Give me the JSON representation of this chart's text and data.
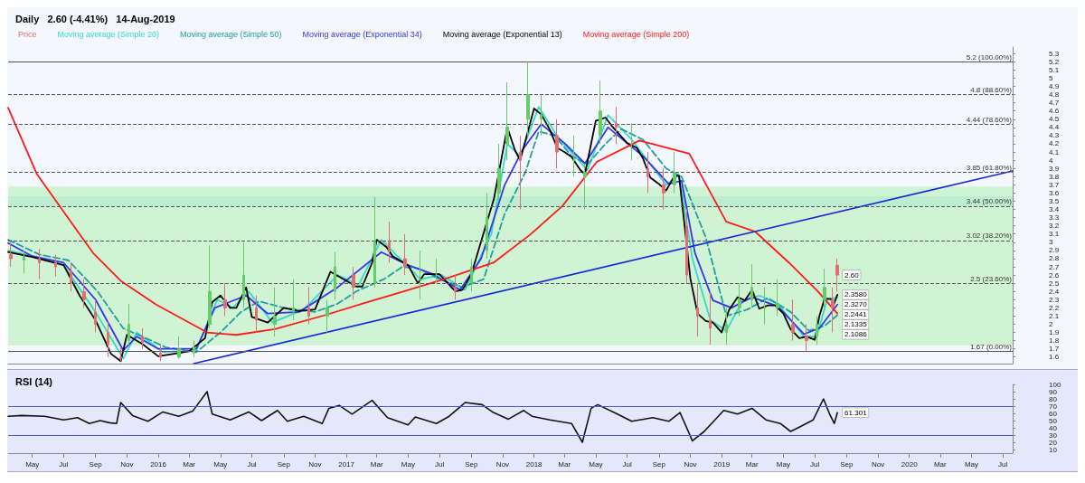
{
  "chart_data": [
    {
      "type": "line",
      "title": "Daily   2.60 (-4.41%)   14-Aug-2019",
      "legend": "top left",
      "tick_labels": "y",
      "xlim": [
        "2015-03-15",
        "2020-07-20"
      ],
      "ylim": [
        1.52,
        5.38
      ],
      "yticks": [
        1.6,
        1.7,
        1.8,
        1.9,
        2,
        2.1,
        2.2,
        2.3,
        2.4,
        2.5,
        2.6,
        2.7,
        2.8,
        2.9,
        3,
        3.1,
        3.2,
        3.3,
        3.4,
        3.5,
        3.6,
        3.7,
        3.8,
        3.9,
        4,
        4.1,
        4.2,
        4.3,
        4.4,
        4.5,
        4.6,
        4.7,
        4.8,
        4.9,
        5,
        5.1,
        5.2,
        5.3
      ],
      "series": [
        {
          "name": "Price",
          "type": "candlestick",
          "colors": [
            "#e07070",
            "#66cc66",
            "#e07070",
            "#e07070",
            "#e07070",
            "#e07070",
            "#e07070",
            "#e07070",
            "#e07070",
            "#66cc66",
            "#e07070",
            "#e07070",
            "#66cc66",
            "#66cc66",
            "#66cc66",
            "#e07070",
            "#66cc66",
            "#e07070",
            "#66cc66",
            "#66cc66",
            "#e07070",
            "#66cc66",
            "#66cc66",
            "#e07070",
            "#66cc66",
            "#e07070",
            "#e07070",
            "#66cc66",
            "#66cc66",
            "#e07070",
            "#66cc66",
            "#66cc66",
            "#66cc66",
            "#66cc66",
            "#e07070",
            "#66cc66",
            "#66cc66",
            "#e07070",
            "#66cc66",
            "#66cc66",
            "#66cc66",
            "#e07070",
            "#66cc66",
            "#e07070",
            "#e07070",
            "#66cc66",
            "#e07070",
            "#e07070",
            "#e07070",
            "#66cc66",
            "#66cc66",
            "#66cc66",
            "#66cc66",
            "#66cc66",
            "#e07070",
            "#e07070",
            "#66cc66",
            "#66cc66",
            "#e07070",
            "#e07070"
          ],
          "x": [
            "2015-03-20",
            "2015-04-15",
            "2015-05-15",
            "2015-06-15",
            "2015-07-15",
            "2015-08-10",
            "2015-09-01",
            "2015-09-25",
            "2015-10-20",
            "2015-11-05",
            "2015-12-01",
            "2016-01-05",
            "2016-02-10",
            "2016-03-10",
            "2016-04-10",
            "2016-05-10",
            "2016-06-15",
            "2016-07-10",
            "2016-08-15",
            "2016-09-20",
            "2016-10-20",
            "2016-11-25",
            "2016-12-10",
            "2017-01-15",
            "2017-02-25",
            "2017-03-25",
            "2017-04-25",
            "2017-05-25",
            "2017-06-25",
            "2017-08-01",
            "2017-09-01",
            "2017-10-01",
            "2017-10-25",
            "2017-11-10",
            "2017-12-05",
            "2017-12-20",
            "2018-01-15",
            "2018-02-15",
            "2018-03-20",
            "2018-04-10",
            "2018-05-10",
            "2018-06-10",
            "2018-07-10",
            "2018-08-10",
            "2018-09-10",
            "2018-10-01",
            "2018-10-25",
            "2018-11-15",
            "2018-12-10",
            "2019-01-10",
            "2019-02-05",
            "2019-03-01",
            "2019-03-25",
            "2019-04-20",
            "2019-05-20",
            "2019-06-15",
            "2019-07-05",
            "2019-07-20",
            "2019-08-05",
            "2019-08-14"
          ],
          "ohlc": [
            [
              2.85,
              3.0,
              2.7,
              2.8
            ],
            [
              2.78,
              2.9,
              2.62,
              2.82
            ],
            [
              2.8,
              2.92,
              2.55,
              2.75
            ],
            [
              2.75,
              2.85,
              2.58,
              2.7
            ],
            [
              2.65,
              2.75,
              2.4,
              2.5
            ],
            [
              2.4,
              2.55,
              2.2,
              2.3
            ],
            [
              2.15,
              2.3,
              1.9,
              2.0
            ],
            [
              1.9,
              2.05,
              1.6,
              1.75
            ],
            [
              1.6,
              1.72,
              1.55,
              1.58
            ],
            [
              1.8,
              2.25,
              1.75,
              2.0
            ],
            [
              1.85,
              1.95,
              1.7,
              1.78
            ],
            [
              1.65,
              1.75,
              1.55,
              1.6
            ],
            [
              1.6,
              1.85,
              1.58,
              1.7
            ],
            [
              1.65,
              1.8,
              1.6,
              1.72
            ],
            [
              2.0,
              2.96,
              1.95,
              2.4
            ],
            [
              2.3,
              2.5,
              2.1,
              2.2
            ],
            [
              2.3,
              3.0,
              2.2,
              2.6
            ],
            [
              2.2,
              2.35,
              1.9,
              2.05
            ],
            [
              2.0,
              2.45,
              1.85,
              2.1
            ],
            [
              2.15,
              2.55,
              2.05,
              2.2
            ],
            [
              2.2,
              2.45,
              2.0,
              2.1
            ],
            [
              2.1,
              2.3,
              1.9,
              2.2
            ],
            [
              2.4,
              2.88,
              2.3,
              2.7
            ],
            [
              2.6,
              2.7,
              2.3,
              2.45
            ],
            [
              2.5,
              3.55,
              2.45,
              3.0
            ],
            [
              3.0,
              3.25,
              2.75,
              2.9
            ],
            [
              2.8,
              3.1,
              2.6,
              2.7
            ],
            [
              2.55,
              2.9,
              2.3,
              2.55
            ],
            [
              2.6,
              2.8,
              2.5,
              2.6
            ],
            [
              2.45,
              2.6,
              2.3,
              2.4
            ],
            [
              2.5,
              2.8,
              2.4,
              2.7
            ],
            [
              2.9,
              3.6,
              2.8,
              3.3
            ],
            [
              3.6,
              4.2,
              3.5,
              3.9
            ],
            [
              4.2,
              4.95,
              4.0,
              4.4
            ],
            [
              4.1,
              4.3,
              3.4,
              4.0
            ],
            [
              4.5,
              5.2,
              4.3,
              4.8
            ],
            [
              4.5,
              4.8,
              4.3,
              4.55
            ],
            [
              4.3,
              4.5,
              3.9,
              4.1
            ],
            [
              4.0,
              4.3,
              3.8,
              4.0
            ],
            [
              3.8,
              3.95,
              3.4,
              3.85
            ],
            [
              4.3,
              4.97,
              4.2,
              4.6
            ],
            [
              4.45,
              4.65,
              4.2,
              4.4
            ],
            [
              4.2,
              4.45,
              4.0,
              4.2
            ],
            [
              3.9,
              4.1,
              3.6,
              3.8
            ],
            [
              3.7,
              3.9,
              3.4,
              3.6
            ],
            [
              3.7,
              4.1,
              3.6,
              3.85
            ],
            [
              3.2,
              3.4,
              2.5,
              2.6
            ],
            [
              2.2,
              2.5,
              1.85,
              2.1
            ],
            [
              2.05,
              2.4,
              1.75,
              1.95
            ],
            [
              1.9,
              2.2,
              1.75,
              2.0
            ],
            [
              2.2,
              2.5,
              2.1,
              2.3
            ],
            [
              2.3,
              2.73,
              2.2,
              2.45
            ],
            [
              2.2,
              2.45,
              2.0,
              2.2
            ],
            [
              2.2,
              2.55,
              2.1,
              2.25
            ],
            [
              2.0,
              2.3,
              1.8,
              1.9
            ],
            [
              1.85,
              2.0,
              1.67,
              1.8
            ],
            [
              1.85,
              2.1,
              1.75,
              2.0
            ],
            [
              2.3,
              2.68,
              2.2,
              2.45
            ],
            [
              2.3,
              2.45,
              1.9,
              2.2
            ],
            [
              2.72,
              2.8,
              2.4,
              2.6
            ]
          ]
        },
        {
          "name": "Moving average (Simple 20)",
          "color": "#33dcc8",
          "x": [
            "2015-03-15",
            "2015-05-01",
            "2015-07-01",
            "2015-09-01",
            "2015-10-25",
            "2015-11-20",
            "2016-01-10",
            "2016-03-15",
            "2016-04-25",
            "2016-05-25",
            "2016-06-25",
            "2016-08-10",
            "2016-10-10",
            "2016-12-15",
            "2017-01-25",
            "2017-03-10",
            "2017-04-15",
            "2017-05-25",
            "2017-07-05",
            "2017-08-20",
            "2017-10-10",
            "2017-11-10",
            "2017-12-05",
            "2018-01-10",
            "2018-02-20",
            "2018-04-15",
            "2018-05-25",
            "2018-07-10",
            "2018-09-15",
            "2018-10-10",
            "2018-11-05",
            "2018-12-10",
            "2019-01-10",
            "2019-02-10",
            "2019-03-15",
            "2019-04-20",
            "2019-06-10",
            "2019-07-05",
            "2019-07-25",
            "2019-08-14"
          ],
          "values": [
            2.9,
            2.83,
            2.72,
            2.15,
            1.58,
            1.9,
            1.66,
            1.68,
            2.3,
            2.2,
            2.4,
            2.02,
            2.18,
            2.6,
            2.48,
            3.03,
            2.8,
            2.55,
            2.6,
            2.42,
            3.1,
            4.2,
            4.05,
            4.65,
            4.25,
            3.88,
            4.55,
            4.25,
            3.7,
            3.82,
            2.8,
            2.05,
            1.92,
            2.28,
            2.35,
            2.25,
            1.85,
            1.85,
            2.3,
            2.33
          ]
        },
        {
          "name": "Moving average (Simple 50)",
          "color": "#1fa0a0",
          "line_style": "dashed",
          "x": [
            "2015-03-15",
            "2015-05-15",
            "2015-07-10",
            "2015-09-05",
            "2015-10-25",
            "2015-12-01",
            "2016-01-15",
            "2016-03-15",
            "2016-05-01",
            "2016-06-10",
            "2016-07-15",
            "2016-09-01",
            "2016-11-01",
            "2016-12-15",
            "2017-01-20",
            "2017-03-15",
            "2017-04-20",
            "2017-05-20",
            "2017-07-01",
            "2017-08-15",
            "2017-09-25",
            "2017-11-05",
            "2017-12-15",
            "2018-01-10",
            "2018-02-10",
            "2018-03-15",
            "2018-04-15",
            "2018-05-20",
            "2018-06-20",
            "2018-08-01",
            "2018-09-15",
            "2018-10-15",
            "2018-12-01",
            "2019-01-10",
            "2019-02-20",
            "2019-04-01",
            "2019-05-15",
            "2019-06-20",
            "2019-07-20",
            "2019-08-14"
          ],
          "values": [
            3.03,
            2.85,
            2.78,
            2.4,
            1.95,
            1.85,
            1.72,
            1.66,
            1.9,
            2.15,
            2.28,
            2.2,
            2.15,
            2.25,
            2.4,
            2.55,
            2.7,
            2.68,
            2.55,
            2.45,
            2.55,
            3.35,
            3.85,
            4.35,
            4.3,
            4.05,
            3.95,
            4.2,
            4.38,
            4.25,
            3.9,
            3.8,
            3.06,
            2.1,
            2.18,
            2.32,
            2.15,
            1.92,
            1.98,
            2.11
          ]
        },
        {
          "name": "Moving average (Exponential 34)",
          "color": "#3535f0",
          "x": [
            "2015-03-15",
            "2015-05-01",
            "2015-07-01",
            "2015-09-01",
            "2015-10-25",
            "2015-11-20",
            "2016-01-01",
            "2016-03-15",
            "2016-04-20",
            "2016-06-20",
            "2016-08-01",
            "2016-10-01",
            "2016-12-15",
            "2017-03-10",
            "2017-05-01",
            "2017-06-15",
            "2017-08-10",
            "2017-09-20",
            "2017-11-05",
            "2017-12-10",
            "2018-01-15",
            "2018-03-01",
            "2018-04-10",
            "2018-05-25",
            "2018-08-01",
            "2018-09-20",
            "2018-10-15",
            "2018-11-10",
            "2018-12-15",
            "2019-01-20",
            "2019-03-01",
            "2019-04-20",
            "2019-06-10",
            "2019-07-10",
            "2019-08-14"
          ],
          "values": [
            2.99,
            2.83,
            2.75,
            2.3,
            1.68,
            1.85,
            1.7,
            1.7,
            2.2,
            2.35,
            2.13,
            2.15,
            2.45,
            2.88,
            2.72,
            2.62,
            2.42,
            2.8,
            3.7,
            4.13,
            4.44,
            4.21,
            3.96,
            4.4,
            4.05,
            3.71,
            3.75,
            2.87,
            2.29,
            2.2,
            2.33,
            2.22,
            1.88,
            1.95,
            2.24
          ]
        },
        {
          "name": "Moving average (Exponential 13)",
          "color": "#000000",
          "x": [
            "2015-03-15",
            "2015-05-01",
            "2015-07-01",
            "2015-08-01",
            "2015-09-01",
            "2015-10-01",
            "2015-10-20",
            "2015-11-01",
            "2015-12-01",
            "2016-01-01",
            "2016-02-01",
            "2016-03-01",
            "2016-04-01",
            "2016-04-15",
            "2016-05-01",
            "2016-05-20",
            "2016-06-01",
            "2016-06-20",
            "2016-07-01",
            "2016-08-01",
            "2016-09-01",
            "2016-10-01",
            "2016-11-01",
            "2016-12-01",
            "2017-01-01",
            "2017-01-20",
            "2017-02-01",
            "2017-02-20",
            "2017-03-01",
            "2017-03-20",
            "2017-04-01",
            "2017-05-01",
            "2017-05-20",
            "2017-06-01",
            "2017-07-01",
            "2017-08-01",
            "2017-08-15",
            "2017-09-01",
            "2017-10-01",
            "2017-10-15",
            "2017-11-10",
            "2017-11-25",
            "2017-12-05",
            "2018-01-01",
            "2018-01-15",
            "2018-02-01",
            "2018-02-15",
            "2018-03-01",
            "2018-03-15",
            "2018-04-01",
            "2018-04-10",
            "2018-05-01",
            "2018-05-20",
            "2018-06-01",
            "2018-07-01",
            "2018-07-20",
            "2018-08-01",
            "2018-08-15",
            "2018-09-01",
            "2018-09-15",
            "2018-10-01",
            "2018-10-10",
            "2018-10-20",
            "2018-11-01",
            "2018-11-15",
            "2018-12-01",
            "2018-12-15",
            "2019-01-01",
            "2019-01-15",
            "2019-02-01",
            "2019-02-15",
            "2019-03-01",
            "2019-03-15",
            "2019-04-01",
            "2019-04-15",
            "2019-05-01",
            "2019-05-15",
            "2019-06-01",
            "2019-06-15",
            "2019-07-01",
            "2019-07-10",
            "2019-07-20",
            "2019-08-01",
            "2019-08-07",
            "2019-08-14"
          ],
          "values": [
            2.88,
            2.82,
            2.72,
            2.35,
            2.05,
            1.64,
            1.55,
            1.87,
            1.76,
            1.61,
            1.64,
            1.67,
            1.83,
            2.27,
            2.35,
            2.2,
            2.2,
            2.45,
            2.09,
            2.02,
            2.2,
            2.16,
            2.18,
            2.64,
            2.53,
            2.46,
            2.46,
            2.75,
            3.03,
            2.94,
            2.83,
            2.72,
            2.5,
            2.61,
            2.61,
            2.4,
            2.42,
            2.61,
            3.24,
            3.53,
            4.4,
            4.12,
            4.0,
            4.63,
            4.56,
            4.37,
            4.15,
            4.1,
            4.04,
            3.88,
            3.83,
            4.48,
            4.52,
            4.42,
            4.21,
            4.15,
            4.02,
            3.79,
            3.71,
            3.63,
            3.81,
            3.81,
            3.25,
            2.56,
            2.13,
            2.04,
            2.02,
            1.9,
            2.17,
            2.33,
            2.29,
            2.42,
            2.19,
            2.23,
            2.23,
            2.13,
            1.94,
            1.83,
            1.85,
            1.81,
            2.1,
            2.31,
            2.31,
            2.24,
            2.36
          ]
        },
        {
          "name": "Moving average (Simple 200)",
          "color": "#ff1a1a",
          "x": [
            "2015-03-15",
            "2015-05-10",
            "2015-08-27",
            "2015-10-20",
            "2015-12-28",
            "2016-04-05",
            "2016-06-01",
            "2016-08-15",
            "2016-11-20",
            "2017-02-06",
            "2017-05-03",
            "2017-07-10",
            "2017-10-14",
            "2017-12-24",
            "2018-02-25",
            "2018-05-03",
            "2018-07-25",
            "2018-10-30",
            "2019-01-10",
            "2019-03-07",
            "2019-05-12",
            "2019-07-07",
            "2019-08-14"
          ],
          "values": [
            4.64,
            3.83,
            2.87,
            2.53,
            2.24,
            1.9,
            1.87,
            1.94,
            2.11,
            2.26,
            2.42,
            2.55,
            2.75,
            3.09,
            3.44,
            3.98,
            4.24,
            4.08,
            3.25,
            3.13,
            2.75,
            2.4,
            2.13
          ]
        },
        {
          "color": "#1a2bd6",
          "x": [
            "2016-03-10",
            "2020-07-20"
          ],
          "values": [
            1.52,
            3.87
          ]
        }
      ],
      "ref_lines": [
        {
          "axis": "y",
          "value": 5.2,
          "label": "5.2 (100.00%)",
          "color": "#555555",
          "line_style": "solid"
        },
        {
          "axis": "y",
          "value": 4.8,
          "label": "4.8 (88.60%)",
          "color": "#555555",
          "line_style": "dashed"
        },
        {
          "axis": "y",
          "value": 4.44,
          "label": "4.44 (78.60%)",
          "color": "#555555",
          "line_style": "dashed"
        },
        {
          "axis": "y",
          "value": 3.85,
          "label": "3.85 (61.80%)",
          "color": "#555555",
          "line_style": "dashed"
        },
        {
          "axis": "y",
          "value": 3.44,
          "label": "3.44 (50.00%)",
          "color": "#555555",
          "line_style": "dashed"
        },
        {
          "axis": "y",
          "value": 3.02,
          "label": "3.02 (38.20%)",
          "color": "#555555",
          "line_style": "dashed"
        },
        {
          "axis": "y",
          "value": 2.5,
          "label": "2.5 (23.60%)",
          "color": "#555555",
          "line_style": "dashed"
        },
        {
          "axis": "y",
          "value": 1.67,
          "label": "1.67 (0.00%)",
          "color": "#555555",
          "line_style": "solid"
        }
      ],
      "bands": [
        {
          "axis": "y",
          "from": 3.44,
          "to": 3.56,
          "color": "#a8dcf0"
        },
        {
          "axis": "y",
          "from": 1.74,
          "to": 2.7,
          "color": "#b0f0b0"
        },
        {
          "axis": "y",
          "from": 2.7,
          "to": 3.68,
          "color": "#b0f0b0"
        }
      ],
      "annotations": [
        {
          "text": "2.60",
          "x": "2019-08-14",
          "y": 2.6
        },
        {
          "text": "2.3580",
          "x": "2019-08-14",
          "y": 2.36
        },
        {
          "text": "2.3270",
          "x": "2019-08-14",
          "y": 2.33
        },
        {
          "text": "2.2441",
          "x": "2019-08-14",
          "y": 2.24
        },
        {
          "text": "2.1335",
          "x": "2019-08-14",
          "y": 2.13
        },
        {
          "text": "2.1086",
          "x": "2019-08-14",
          "y": 2.11
        }
      ]
    },
    {
      "type": "line",
      "title": "RSI (14)",
      "tick_labels": "xy",
      "xlim": [
        "2015-03-15",
        "2020-07-20"
      ],
      "ylim": [
        5,
        100
      ],
      "yticks": [
        10,
        20,
        30,
        40,
        50,
        60,
        70,
        80,
        90,
        100
      ],
      "xticks": [
        {
          "value": "2015-05-01",
          "label": "May"
        },
        {
          "value": "2015-07-01",
          "label": "Jul"
        },
        {
          "value": "2015-09-01",
          "label": "Sep"
        },
        {
          "value": "2015-11-01",
          "label": "Nov"
        },
        {
          "value": "2016-01-01",
          "label": "2016"
        },
        {
          "value": "2016-03-01",
          "label": "Mar"
        },
        {
          "value": "2016-05-01",
          "label": "May"
        },
        {
          "value": "2016-07-01",
          "label": "Jul"
        },
        {
          "value": "2016-09-01",
          "label": "Sep"
        },
        {
          "value": "2016-11-01",
          "label": "Nov"
        },
        {
          "value": "2017-01-01",
          "label": "2017"
        },
        {
          "value": "2017-03-01",
          "label": "Mar"
        },
        {
          "value": "2017-05-01",
          "label": "May"
        },
        {
          "value": "2017-07-01",
          "label": "Jul"
        },
        {
          "value": "2017-09-01",
          "label": "Sep"
        },
        {
          "value": "2017-11-01",
          "label": "Nov"
        },
        {
          "value": "2018-01-01",
          "label": "2018"
        },
        {
          "value": "2018-03-01",
          "label": "Mar"
        },
        {
          "value": "2018-05-01",
          "label": "May"
        },
        {
          "value": "2018-07-01",
          "label": "Jul"
        },
        {
          "value": "2018-09-01",
          "label": "Sep"
        },
        {
          "value": "2018-11-01",
          "label": "Nov"
        },
        {
          "value": "2019-01-01",
          "label": "2019"
        },
        {
          "value": "2019-03-01",
          "label": "Mar"
        },
        {
          "value": "2019-05-01",
          "label": "May"
        },
        {
          "value": "2019-07-01",
          "label": "Jul"
        },
        {
          "value": "2019-09-01",
          "label": "Sep"
        },
        {
          "value": "2019-11-01",
          "label": "Nov"
        },
        {
          "value": "2020-01-01",
          "label": "2020"
        },
        {
          "value": "2020-03-01",
          "label": "Mar"
        },
        {
          "value": "2020-05-01",
          "label": "May"
        },
        {
          "value": "2020-07-01",
          "label": "Jul"
        }
      ],
      "series": [
        {
          "color": "#111111",
          "x": [
            "2015-03-15",
            "2015-04-10",
            "2015-05-25",
            "2015-07-01",
            "2015-07-28",
            "2015-08-20",
            "2015-09-10",
            "2015-09-28",
            "2015-10-12",
            "2015-10-20",
            "2015-11-12",
            "2015-12-12",
            "2016-01-10",
            "2016-02-10",
            "2016-03-08",
            "2016-04-05",
            "2016-04-15",
            "2016-05-20",
            "2016-06-25",
            "2016-07-20",
            "2016-08-20",
            "2016-09-08",
            "2016-10-10",
            "2016-11-15",
            "2016-11-28",
            "2016-12-18",
            "2017-01-12",
            "2017-02-20",
            "2017-03-22",
            "2017-05-01",
            "2017-05-15",
            "2017-06-25",
            "2017-07-20",
            "2017-08-20",
            "2017-09-22",
            "2017-10-12",
            "2017-11-12",
            "2017-12-12",
            "2017-12-28",
            "2018-02-01",
            "2018-03-15",
            "2018-04-05",
            "2018-04-22",
            "2018-05-05",
            "2018-06-12",
            "2018-07-10",
            "2018-08-20",
            "2018-09-20",
            "2018-10-12",
            "2018-11-05",
            "2018-11-28",
            "2019-01-05",
            "2019-02-01",
            "2019-03-01",
            "2019-03-28",
            "2019-04-25",
            "2019-05-15",
            "2019-06-01",
            "2019-06-28",
            "2019-07-18",
            "2019-07-30",
            "2019-08-08",
            "2019-08-14"
          ],
          "values": [
            56,
            57,
            56,
            51,
            54,
            46,
            50,
            47,
            46,
            75,
            57,
            49,
            62,
            56,
            63,
            90,
            59,
            51,
            62,
            50,
            64,
            49,
            56,
            46,
            67,
            71,
            59,
            78,
            54,
            44,
            55,
            46,
            56,
            75,
            72,
            62,
            52,
            64,
            56,
            51,
            46,
            20,
            67,
            72,
            59,
            49,
            54,
            49,
            61,
            22,
            35,
            64,
            59,
            67,
            51,
            46,
            35,
            41,
            51,
            80,
            59,
            46,
            61
          ]
        }
      ],
      "ref_lines": [
        {
          "axis": "y",
          "value": 70,
          "color": "#4a5ac8",
          "line_style": "solid"
        },
        {
          "axis": "y",
          "value": 30,
          "color": "#4a5ac8",
          "line_style": "solid"
        }
      ],
      "annotations": [
        {
          "text": "61.301",
          "x": "2019-08-14",
          "y": 61
        }
      ]
    }
  ]
}
